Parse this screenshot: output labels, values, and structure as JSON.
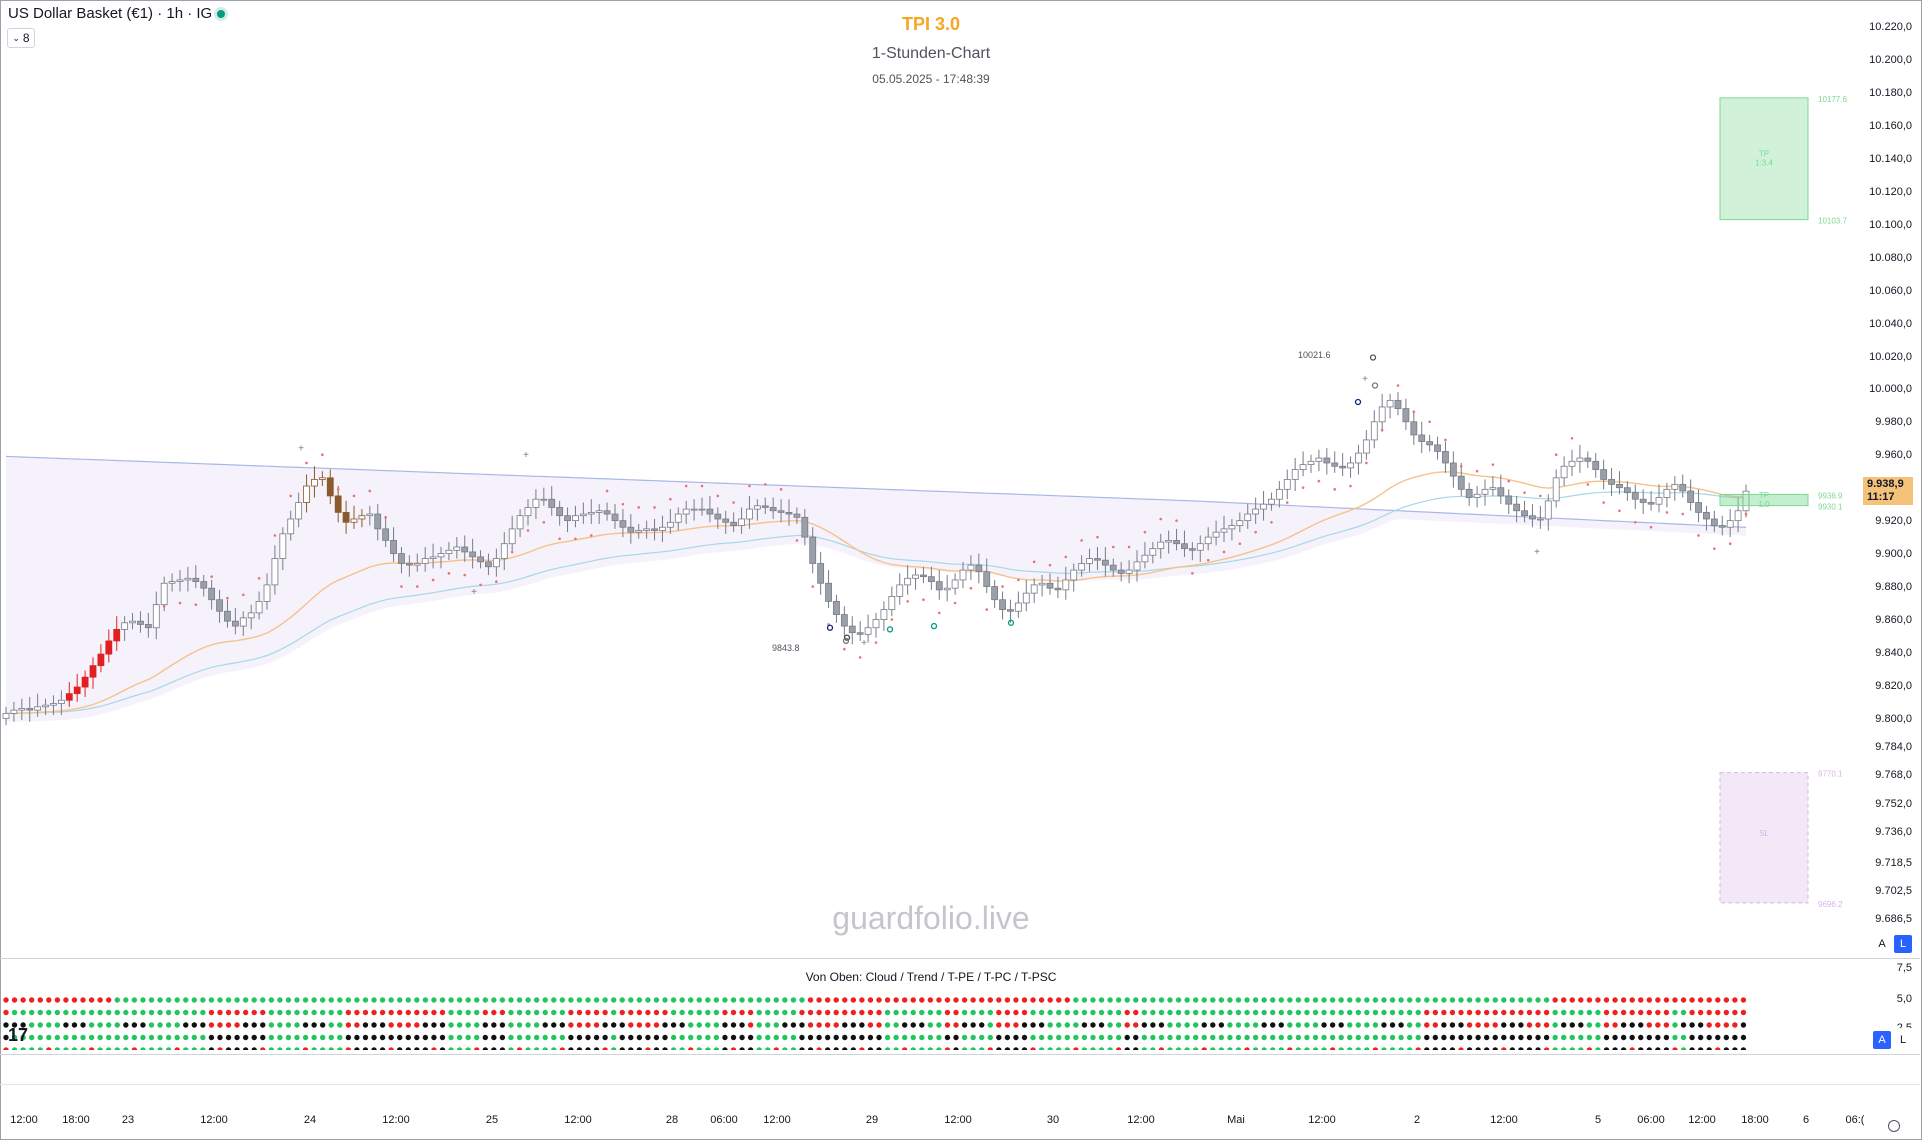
{
  "header": {
    "symbol": "US Dollar Basket (€1) · 1h · IG",
    "collapse_count": "8"
  },
  "chart_title": "TPI 3.0",
  "chart_subtitle": "1-Stunden-Chart",
  "chart_timestamp": "05.05.2025 - 17:48:39",
  "watermark": "guardfolio.live",
  "current_price": {
    "value": "9.938,9",
    "countdown": "11:17"
  },
  "main_buttons": {
    "auto": "A",
    "log": "L"
  },
  "indicator": {
    "title": "Von Oben: Cloud / Trend / T-PE / T-PC / T-PSC",
    "axis_labels": [
      "7,5",
      "5,0",
      "2,5"
    ],
    "buttons": {
      "auto": "A",
      "log": "L"
    },
    "colors": {
      "green": "#22c55e",
      "red": "#ef2020",
      "black": "#111111"
    }
  },
  "tv_logo": "17",
  "colors": {
    "up_candle_border": "#787b86",
    "down_candle": "#787b86",
    "brown_candle": "#8b5a2b",
    "red_candle": "#e02020",
    "trail_dots": "#e57373",
    "ema_orange": "#f6c28b",
    "ema_blue": "#a9b7e8",
    "ema_teal": "#a7d8e6",
    "tp_box": "#7cd992",
    "sl_box": "#d8b4e8"
  },
  "chart_data": {
    "type": "candlestick",
    "title": "TPI 3.0",
    "subtitle": "1-Stunden-Chart",
    "price_axis_ticks": [
      10220,
      10200,
      10180,
      10160,
      10140,
      10120,
      10100,
      10080,
      10060,
      10040,
      10020,
      10000,
      9980,
      9960,
      9940,
      9920,
      9900,
      9880,
      9860,
      9840,
      9820,
      9800,
      9784,
      9768,
      9752,
      9736,
      9718.5,
      9702.5,
      9686.5
    ],
    "price_axis_labels": [
      "10.220,0",
      "10.200,0",
      "10.180,0",
      "10.160,0",
      "10.140,0",
      "10.120,0",
      "10.100,0",
      "10.080,0",
      "10.060,0",
      "10.040,0",
      "10.020,0",
      "10.000,0",
      "9.980,0",
      "9.960,0",
      "9.938,9",
      "9.920,0",
      "9.900,0",
      "9.880,0",
      "9.860,0",
      "9.840,0",
      "9.820,0",
      "9.800,0",
      "9.784,0",
      "9.768,0",
      "9.752,0",
      "9.736,0",
      "9.718,5",
      "9.702,5",
      "9.686,5"
    ],
    "time_axis_labels": [
      "12:00",
      "18:00",
      "23",
      "12:00",
      "24",
      "12:00",
      "25",
      "12:00",
      "28",
      "06:00",
      "12:00",
      "29",
      "12:00",
      "30",
      "12:00",
      "Mai",
      "12:00",
      "2",
      "12:00",
      "5",
      "06:00",
      "12:00",
      "18:00",
      "6",
      "06:("
    ],
    "annotations": [
      {
        "label": "10021.6",
        "price": 10021.6
      },
      {
        "label": "9843.8",
        "price": 9843.8
      }
    ],
    "take_profit_zone": {
      "top_label": "10177.6",
      "bottom_label": "10103.7",
      "text": "TP",
      "ratio": "1:3.4",
      "top": 10177.6,
      "bottom": 10103.7
    },
    "entry_zone": {
      "top_label": "9936.9",
      "bottom_label": "9930.1",
      "text": "TP",
      "ratio": "1:0",
      "top": 9936.9,
      "bottom": 9930.1
    },
    "stop_zone": {
      "top_label": "9770.1",
      "bottom_label": "9696.2",
      "text": "SL",
      "top": 9770.1,
      "bottom": 9696.2
    },
    "closes": [
      9804,
      9806,
      9807,
      9806,
      9808,
      9809,
      9810,
      9812,
      9816,
      9820,
      9826,
      9833,
      9840,
      9848,
      9855,
      9859,
      9860,
      9858,
      9856,
      9870,
      9883,
      9884,
      9885,
      9886,
      9884,
      9880,
      9873,
      9866,
      9860,
      9857,
      9862,
      9865,
      9872,
      9882,
      9898,
      9913,
      9922,
      9932,
      9942,
      9946,
      9947,
      9936,
      9926,
      9920,
      9922,
      9924,
      9925,
      9916,
      9909,
      9901,
      9895,
      9894,
      9895,
      9898,
      9899,
      9901,
      9903,
      9905,
      9902,
      9899,
      9896,
      9893,
      9898,
      9907,
      9916,
      9924,
      9929,
      9934,
      9934,
      9929,
      9924,
      9921,
      9924,
      9925,
      9926,
      9927,
      9925,
      9921,
      9917,
      9914,
      9915,
      9916,
      9915,
      9917,
      9920,
      9925,
      9928,
      9928,
      9928,
      9925,
      9922,
      9920,
      9918,
      9922,
      9928,
      9930,
      9929,
      9927,
      9926,
      9925,
      9923,
      9911,
      9895,
      9883,
      9872,
      9864,
      9857,
      9853,
      9852,
      9856,
      9861,
      9867,
      9875,
      9882,
      9886,
      9888,
      9887,
      9884,
      9879,
      9880,
      9885,
      9891,
      9894,
      9890,
      9881,
      9873,
      9867,
      9866,
      9871,
      9877,
      9882,
      9883,
      9880,
      9879,
      9885,
      9891,
      9895,
      9898,
      9897,
      9894,
      9891,
      9889,
      9891,
      9896,
      9900,
      9904,
      9908,
      9909,
      9907,
      9904,
      9903,
      9907,
      9911,
      9914,
      9916,
      9918,
      9921,
      9925,
      9928,
      9931,
      9934,
      9940,
      9946,
      9952,
      9955,
      9957,
      9959,
      9956,
      9954,
      9953,
      9956,
      9962,
      9970,
      9981,
      9990,
      9994,
      9989,
      9981,
      9973,
      9969,
      9967,
      9963,
      9956,
      9948,
      9940,
      9935,
      9937,
      9940,
      9941,
      9936,
      9931,
      9927,
      9924,
      9922,
      9922,
      9933,
      9947,
      9954,
      9957,
      9959,
      9957,
      9952,
      9946,
      9943,
      9941,
      9938,
      9934,
      9932,
      9931,
      9935,
      9940,
      9943,
      9939,
      9932,
      9926,
      9922,
      9918,
      9917,
      9921,
      9927,
      9938.9
    ],
    "ylim": [
      9680,
      10230
    ]
  }
}
